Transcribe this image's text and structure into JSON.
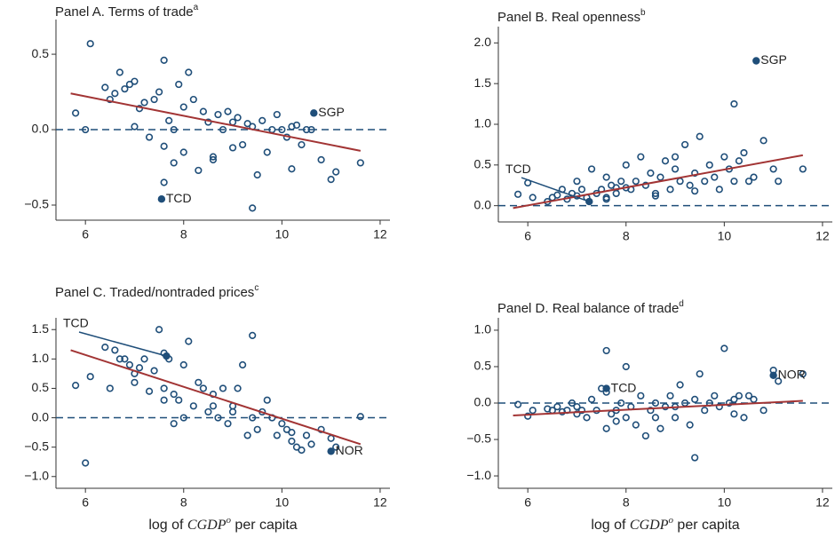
{
  "chart_data": [
    {
      "type": "scatter",
      "title": "Panel A. Terms of trade",
      "title_note": "a",
      "xlim": [
        5.4,
        12.2
      ],
      "xticks": [
        6,
        8,
        10,
        12
      ],
      "ylim": [
        -0.6,
        0.73
      ],
      "yticks": [
        {
          "value": -0.5,
          "label": "−0.5"
        },
        {
          "value": 0,
          "label": "0.0"
        },
        0.5
      ],
      "zero_line": 0,
      "color": "#1f4e79",
      "fit_color": "#a23434",
      "x": [
        5.8,
        6.0,
        6.1,
        6.4,
        6.5,
        6.6,
        6.7,
        6.8,
        6.9,
        7.0,
        7.0,
        7.1,
        7.2,
        7.3,
        7.4,
        7.5,
        7.6,
        7.6,
        7.7,
        7.8,
        7.9,
        8.0,
        8.0,
        8.1,
        8.2,
        8.3,
        8.4,
        8.5,
        8.6,
        8.7,
        8.8,
        8.9,
        9.0,
        9.1,
        9.2,
        9.3,
        9.4,
        9.5,
        9.6,
        9.7,
        9.8,
        9.9,
        10.0,
        10.1,
        10.2,
        10.3,
        10.4,
        10.5,
        10.6,
        10.8,
        11.0,
        11.1,
        11.6,
        9.4,
        8.6,
        7.6,
        7.8,
        9.0,
        10.2
      ],
      "y": [
        0.11,
        0.0,
        0.57,
        0.28,
        0.2,
        0.24,
        0.38,
        0.27,
        0.3,
        0.02,
        0.32,
        0.14,
        0.18,
        -0.05,
        0.2,
        0.25,
        0.46,
        -0.11,
        0.06,
        -0.22,
        0.3,
        0.15,
        -0.15,
        0.38,
        0.2,
        -0.27,
        0.12,
        0.05,
        -0.2,
        0.1,
        0.0,
        0.12,
        0.05,
        0.08,
        -0.1,
        0.04,
        0.02,
        -0.3,
        0.06,
        -0.15,
        0.0,
        0.1,
        0.0,
        -0.05,
        0.02,
        0.03,
        -0.1,
        0.0,
        0.0,
        -0.2,
        -0.33,
        -0.28,
        -0.22,
        -0.52,
        -0.18,
        -0.35,
        0.0,
        -0.12,
        -0.26
      ],
      "fit": {
        "x": [
          5.7,
          11.6
        ],
        "y": [
          0.24,
          -0.14
        ]
      },
      "highlights": [
        {
          "label": "SGP",
          "x": 10.65,
          "y": 0.11
        },
        {
          "label": "TCD",
          "x": 7.55,
          "y": -0.46
        }
      ]
    },
    {
      "type": "scatter",
      "title": "Panel B. Real openness",
      "title_note": "b",
      "xlim": [
        5.4,
        12.2
      ],
      "xticks": [
        6,
        8,
        10,
        12
      ],
      "ylim": [
        -0.2,
        2.2
      ],
      "yticks": [
        {
          "value": 0,
          "label": "0.0"
        },
        0.5,
        {
          "value": 1,
          "label": "1.0"
        },
        1.5,
        {
          "value": 2,
          "label": "2.0"
        }
      ],
      "zero_line": 0,
      "color": "#1f4e79",
      "fit_color": "#a23434",
      "x": [
        5.8,
        6.0,
        6.1,
        6.4,
        6.5,
        6.6,
        6.7,
        6.8,
        6.9,
        7.0,
        7.0,
        7.1,
        7.2,
        7.3,
        7.4,
        7.5,
        7.6,
        7.6,
        7.7,
        7.8,
        7.9,
        8.0,
        8.0,
        8.1,
        8.2,
        8.3,
        8.4,
        8.5,
        8.6,
        8.7,
        8.8,
        8.9,
        9.0,
        9.1,
        9.2,
        9.3,
        9.4,
        9.5,
        9.6,
        9.7,
        9.8,
        9.9,
        10.0,
        10.1,
        10.2,
        10.3,
        10.4,
        10.5,
        10.6,
        10.8,
        11.0,
        11.1,
        11.6,
        9.4,
        8.6,
        7.6,
        7.8,
        9.0,
        10.2
      ],
      "y": [
        0.14,
        0.28,
        0.1,
        0.05,
        0.1,
        0.13,
        0.2,
        0.08,
        0.15,
        0.3,
        0.12,
        0.2,
        0.1,
        0.45,
        0.15,
        0.2,
        0.1,
        0.35,
        0.25,
        0.15,
        0.3,
        0.22,
        0.5,
        0.2,
        0.3,
        0.6,
        0.25,
        0.4,
        0.15,
        0.35,
        0.55,
        0.2,
        0.45,
        0.3,
        0.75,
        0.25,
        0.4,
        0.85,
        0.3,
        0.5,
        0.35,
        0.2,
        0.6,
        0.45,
        0.3,
        0.55,
        0.65,
        0.3,
        0.35,
        0.8,
        0.45,
        0.3,
        0.45,
        0.18,
        0.12,
        0.08,
        0.22,
        0.6,
        1.25
      ],
      "fit": {
        "x": [
          5.7,
          11.6
        ],
        "y": [
          -0.03,
          0.62
        ]
      },
      "highlights": [
        {
          "label": "SGP",
          "x": 10.65,
          "y": 1.78
        },
        {
          "label": "TCD",
          "x": 7.25,
          "y": 0.05,
          "leader": true
        }
      ]
    },
    {
      "type": "scatter",
      "title": "Panel C. Traded/nontraded prices",
      "title_note": "c",
      "xlabel_pre": "log of ",
      "xlabel_var": "CGDP",
      "xlabel_sup": "o",
      "xlabel_post": " per capita",
      "xlim": [
        5.4,
        12.2
      ],
      "xticks": [
        6,
        8,
        10,
        12
      ],
      "ylim": [
        -1.2,
        1.7
      ],
      "yticks": [
        {
          "value": -1,
          "label": "−1.0"
        },
        {
          "value": -0.5,
          "label": "−0.5"
        },
        {
          "value": 0,
          "label": "0.0"
        },
        0.5,
        {
          "value": 1,
          "label": "1.0"
        },
        1.5
      ],
      "zero_line": 0,
      "color": "#1f4e79",
      "fit_color": "#a23434",
      "x": [
        5.8,
        6.0,
        6.1,
        6.4,
        6.5,
        6.6,
        6.7,
        6.8,
        6.9,
        7.0,
        7.0,
        7.1,
        7.2,
        7.3,
        7.4,
        7.5,
        7.6,
        7.6,
        7.7,
        7.8,
        7.9,
        8.0,
        8.0,
        8.1,
        8.2,
        8.3,
        8.4,
        8.5,
        8.6,
        8.7,
        8.8,
        8.9,
        9.0,
        9.1,
        9.2,
        9.3,
        9.4,
        9.5,
        9.6,
        9.7,
        9.8,
        9.9,
        10.0,
        10.1,
        10.2,
        10.3,
        10.4,
        10.5,
        10.6,
        10.8,
        11.0,
        11.1,
        11.6,
        9.4,
        8.6,
        7.6,
        7.8,
        9.0,
        10.2
      ],
      "y": [
        0.55,
        -0.77,
        0.7,
        1.2,
        0.5,
        1.15,
        1.0,
        1.0,
        0.9,
        0.75,
        0.6,
        0.85,
        1.0,
        0.45,
        0.8,
        1.5,
        0.5,
        0.3,
        1.0,
        0.4,
        0.3,
        0.9,
        0.0,
        1.3,
        0.2,
        0.6,
        0.5,
        0.1,
        0.4,
        0.0,
        0.5,
        -0.1,
        0.2,
        0.5,
        0.9,
        -0.3,
        0.0,
        -0.2,
        0.1,
        0.3,
        0.0,
        -0.3,
        -0.1,
        -0.2,
        -0.4,
        -0.5,
        -0.55,
        -0.3,
        -0.45,
        -0.2,
        -0.35,
        -0.5,
        0.02,
        1.4,
        0.2,
        1.1,
        -0.1,
        0.1,
        -0.25
      ],
      "fit": {
        "x": [
          5.7,
          11.6
        ],
        "y": [
          1.15,
          -0.45
        ]
      },
      "highlights": [
        {
          "label": "TCD",
          "x": 7.65,
          "y": 1.05,
          "leader": true
        },
        {
          "label": "NOR",
          "x": 11.0,
          "y": -0.57
        }
      ]
    },
    {
      "type": "scatter",
      "title": "Panel D. Real balance of trade",
      "title_note": "d",
      "xlabel_pre": "log of ",
      "xlabel_var": "CGDP",
      "xlabel_sup": "o",
      "xlabel_post": " per capita",
      "xlim": [
        5.4,
        12.2
      ],
      "xticks": [
        6,
        8,
        10,
        12
      ],
      "ylim": [
        -1.17,
        1.17
      ],
      "yticks": [
        {
          "value": -1,
          "label": "−1.0"
        },
        {
          "value": -0.5,
          "label": "−0.5"
        },
        {
          "value": 0,
          "label": "0.0"
        },
        0.5,
        {
          "value": 1,
          "label": "1.0"
        }
      ],
      "zero_line": 0,
      "color": "#1f4e79",
      "fit_color": "#a23434",
      "x": [
        5.8,
        6.0,
        6.1,
        6.4,
        6.5,
        6.6,
        6.7,
        6.8,
        6.9,
        7.0,
        7.0,
        7.1,
        7.2,
        7.3,
        7.4,
        7.5,
        7.6,
        7.6,
        7.7,
        7.8,
        7.9,
        8.0,
        8.0,
        8.1,
        8.2,
        8.3,
        8.4,
        8.5,
        8.6,
        8.7,
        8.8,
        8.9,
        9.0,
        9.1,
        9.2,
        9.3,
        9.4,
        9.5,
        9.6,
        9.7,
        9.8,
        9.9,
        10.0,
        10.1,
        10.2,
        10.3,
        10.4,
        10.5,
        10.6,
        10.8,
        11.0,
        11.1,
        11.6,
        9.4,
        8.6,
        7.6,
        7.8,
        9.0,
        10.2
      ],
      "y": [
        -0.02,
        -0.18,
        -0.1,
        -0.08,
        -0.1,
        -0.05,
        -0.12,
        -0.1,
        0.0,
        -0.15,
        -0.05,
        -0.1,
        -0.2,
        0.05,
        -0.1,
        0.2,
        0.72,
        -0.35,
        -0.15,
        -0.1,
        0.0,
        -0.2,
        0.5,
        -0.05,
        -0.3,
        0.1,
        -0.45,
        -0.1,
        0.0,
        -0.35,
        -0.05,
        0.1,
        -0.2,
        0.25,
        0.0,
        -0.3,
        0.05,
        0.4,
        -0.1,
        0.0,
        0.1,
        -0.05,
        0.75,
        0.0,
        0.05,
        0.1,
        -0.2,
        0.1,
        0.05,
        -0.1,
        0.45,
        0.3,
        0.4,
        -0.75,
        -0.2,
        0.15,
        -0.25,
        -0.05,
        -0.15
      ],
      "fit": {
        "x": [
          5.7,
          11.6
        ],
        "y": [
          -0.17,
          0.03
        ]
      },
      "highlights": [
        {
          "label": "TCD",
          "x": 7.6,
          "y": 0.2
        },
        {
          "label": "NOR",
          "x": 11.0,
          "y": 0.38
        }
      ]
    }
  ]
}
